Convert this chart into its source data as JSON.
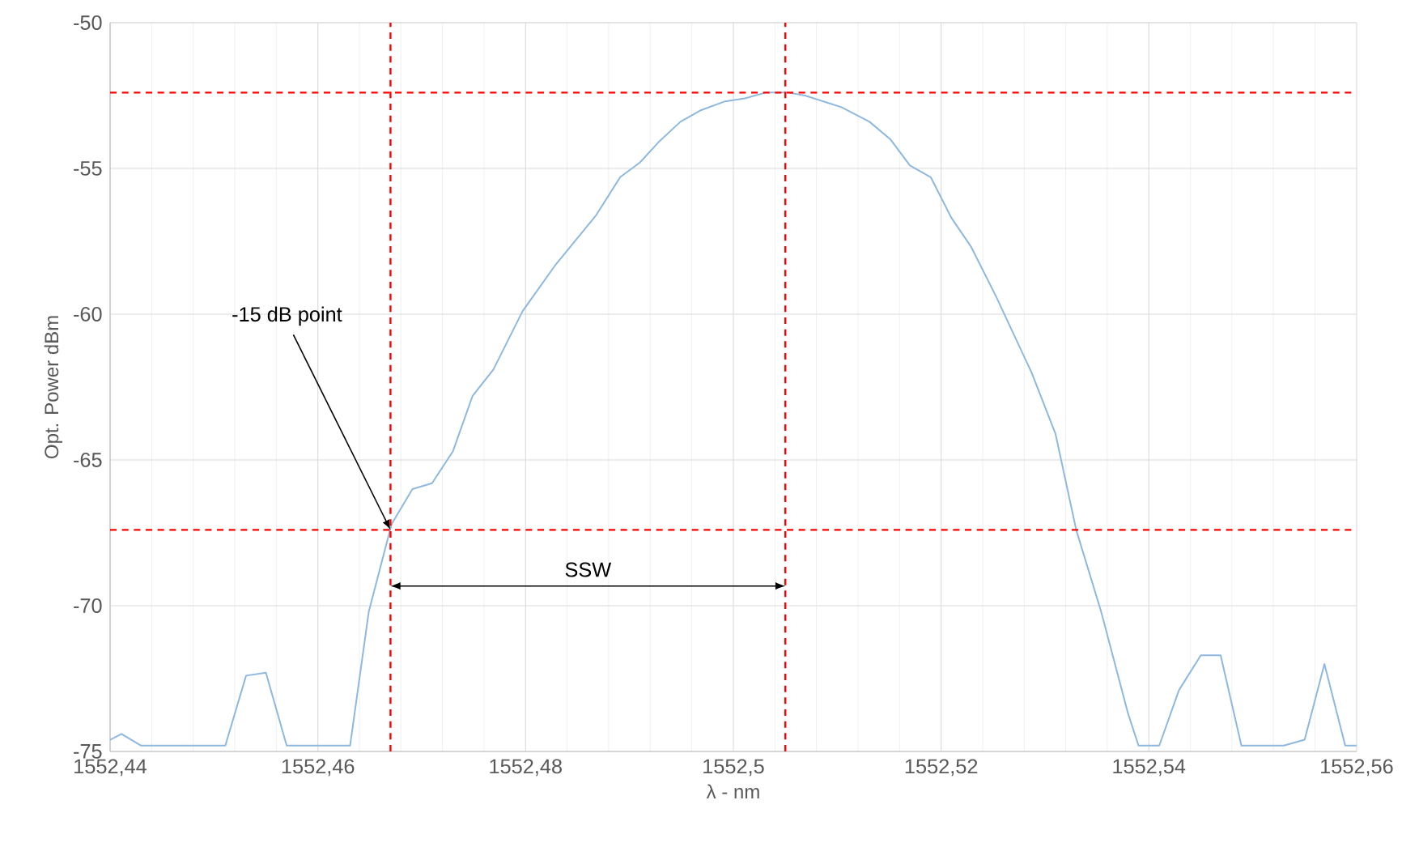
{
  "chart_data": {
    "type": "line",
    "xlabel": "λ - nm",
    "ylabel": "Opt. Power dBm",
    "xlim": [
      1552.44,
      1552.56
    ],
    "ylim": [
      -75,
      -50
    ],
    "xticks": [
      {
        "value": 1552.44,
        "label": "1552,44"
      },
      {
        "value": 1552.46,
        "label": "1552,46"
      },
      {
        "value": 1552.48,
        "label": "1552,48"
      },
      {
        "value": 1552.5,
        "label": "1552,5"
      },
      {
        "value": 1552.52,
        "label": "1552,52"
      },
      {
        "value": 1552.54,
        "label": "1552,54"
      },
      {
        "value": 1552.56,
        "label": "1552,56"
      }
    ],
    "yticks": [
      -75,
      -70,
      -65,
      -60,
      -55,
      -50
    ],
    "grid": true,
    "series": [
      {
        "color": "#8fb8de",
        "line_style": "solid",
        "x": [
          1552.44,
          1552.4411,
          1552.443,
          1552.4511,
          1552.4531,
          1552.455,
          1552.457,
          1552.4631,
          1552.4649,
          1552.4671,
          1552.4691,
          1552.471,
          1552.473,
          1552.4749,
          1552.4769,
          1552.4797,
          1552.4829,
          1552.4868,
          1552.4891,
          1552.491,
          1552.4928,
          1552.4949,
          1552.4969,
          1552.4992,
          1552.5011,
          1552.5031,
          1552.5053,
          1552.5069,
          1552.5104,
          1552.5131,
          1552.5151,
          1552.517,
          1552.519,
          1552.521,
          1552.5229,
          1552.5253,
          1552.5287,
          1552.531,
          1552.533,
          1552.5354,
          1552.538,
          1552.539,
          1552.541,
          1552.5429,
          1552.545,
          1552.5469,
          1552.5489,
          1552.553,
          1552.555,
          1552.5569,
          1552.5589,
          1552.56
        ],
        "values": [
          -74.6,
          -74.4,
          -74.8,
          -74.8,
          -72.4,
          -72.3,
          -74.8,
          -74.8,
          -70.2,
          -67.2,
          -66.0,
          -65.8,
          -64.7,
          -62.8,
          -61.9,
          -59.9,
          -58.3,
          -56.6,
          -55.3,
          -54.8,
          -54.1,
          -53.4,
          -53.0,
          -52.7,
          -52.6,
          -52.4,
          -52.4,
          -52.5,
          -52.9,
          -53.4,
          -54.0,
          -54.9,
          -55.3,
          -56.7,
          -57.7,
          -59.4,
          -62.0,
          -64.1,
          -67.4,
          -70.2,
          -73.7,
          -74.8,
          -74.8,
          -72.9,
          -71.7,
          -71.7,
          -74.8,
          -74.8,
          -74.6,
          -72.0,
          -74.8,
          -74.8
        ]
      }
    ],
    "ref_lines": [
      {
        "axis": "x",
        "value": 1552.467,
        "color": "#ff0000",
        "line_style": "dashed"
      },
      {
        "axis": "x",
        "value": 1552.505,
        "color": "#ff0000",
        "line_style": "dashed"
      },
      {
        "axis": "y",
        "value": -52.4,
        "color": "#ff0000",
        "line_style": "dashed"
      },
      {
        "axis": "y",
        "value": -67.4,
        "color": "#ff0000",
        "line_style": "dashed"
      }
    ],
    "annotations": [
      {
        "text": "-15 dB point",
        "x": 1552.467,
        "y": -67.4
      },
      "SSW"
    ]
  }
}
